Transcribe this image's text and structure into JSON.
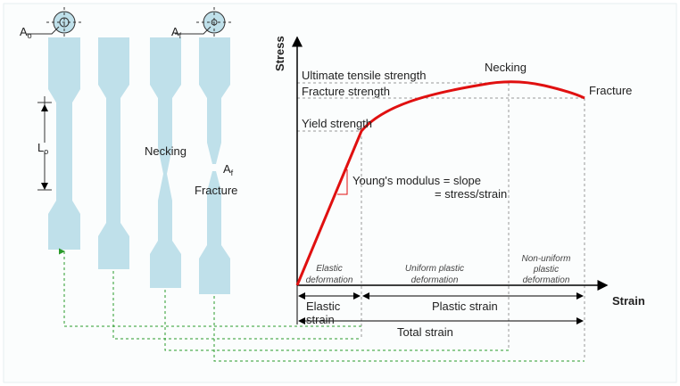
{
  "specimens": {
    "area_original": {
      "base": "A",
      "sub": "o"
    },
    "area_final": {
      "base": "A",
      "sub": "f"
    },
    "gauge_length": {
      "base": "L",
      "sub": "o"
    },
    "necking": "Necking",
    "fracture_area": {
      "base": "A",
      "sub": "f"
    },
    "fracture": "Fracture"
  },
  "graph": {
    "y_axis": "Stress",
    "x_axis": "Strain",
    "ultimate": "Ultimate tensile strength",
    "necking": "Necking",
    "fracture_strength": "Fracture strength",
    "fracture": "Fracture",
    "yield": "Yield strength",
    "modulus_1": "Young's modulus = slope",
    "modulus_2": "= stress/strain",
    "regions": [
      [
        "Elastic",
        "deformation"
      ],
      [
        "Uniform plastic",
        "deformation"
      ],
      [
        "Non-uniform",
        "plastic",
        "deformation"
      ]
    ],
    "elastic_strain": [
      "Elastic",
      "strain"
    ],
    "plastic_strain": "Plastic strain",
    "total_strain": "Total strain"
  }
}
